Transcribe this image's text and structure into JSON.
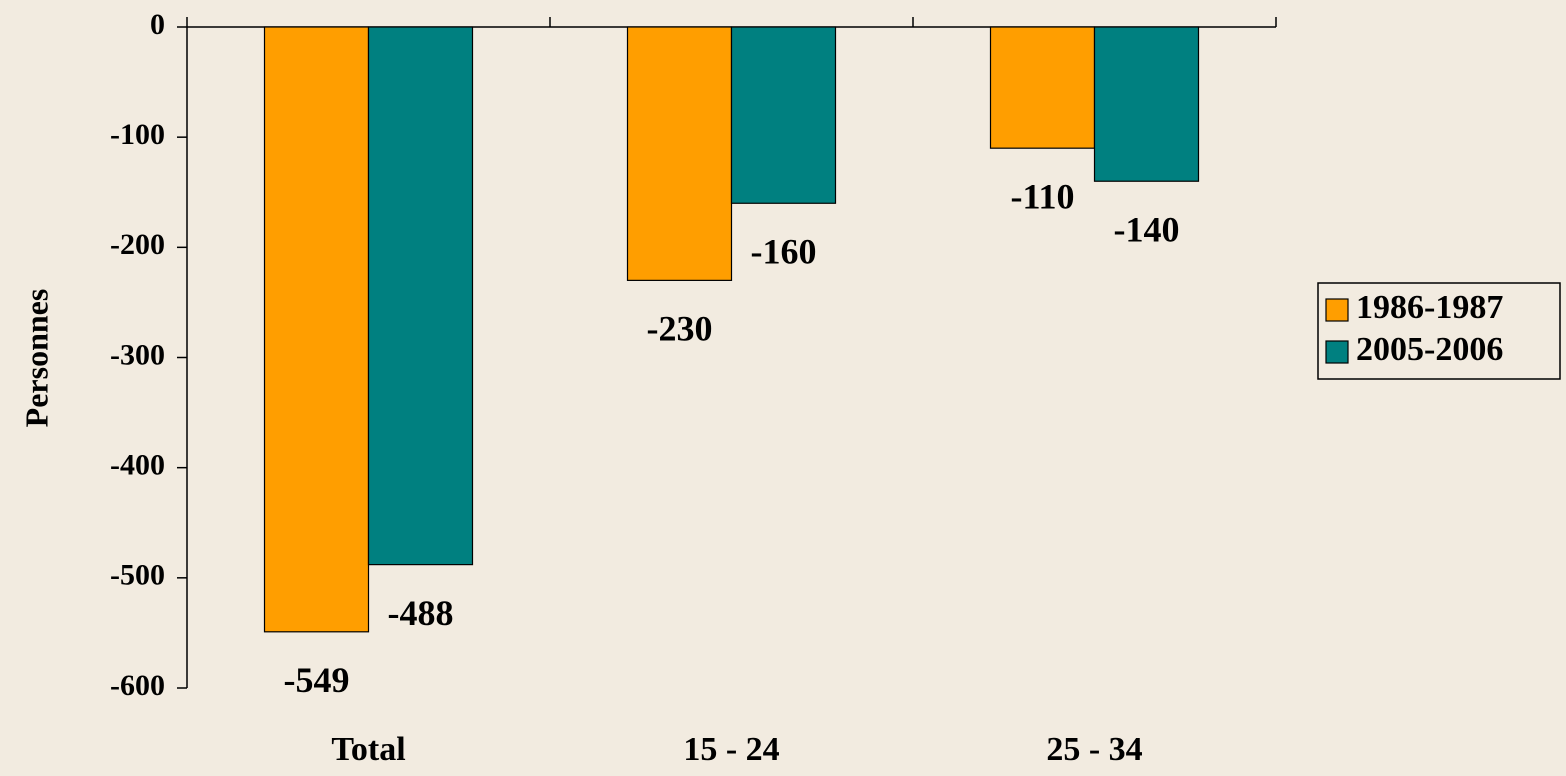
{
  "chart_data": {
    "type": "bar",
    "y_label": "Personnes",
    "categories": [
      "Total",
      "15 - 24",
      "25 - 34"
    ],
    "series": [
      {
        "name": "1986-1987",
        "color": "#ff9e00",
        "values": [
          -549,
          -230,
          -110
        ]
      },
      {
        "name": "2005-2006",
        "color": "#008080",
        "values": [
          -488,
          -160,
          -140
        ]
      }
    ],
    "ylim": [
      -600,
      0
    ],
    "yticks": [
      0,
      -100,
      -200,
      -300,
      -400,
      -500,
      -600
    ],
    "legend": "right"
  }
}
